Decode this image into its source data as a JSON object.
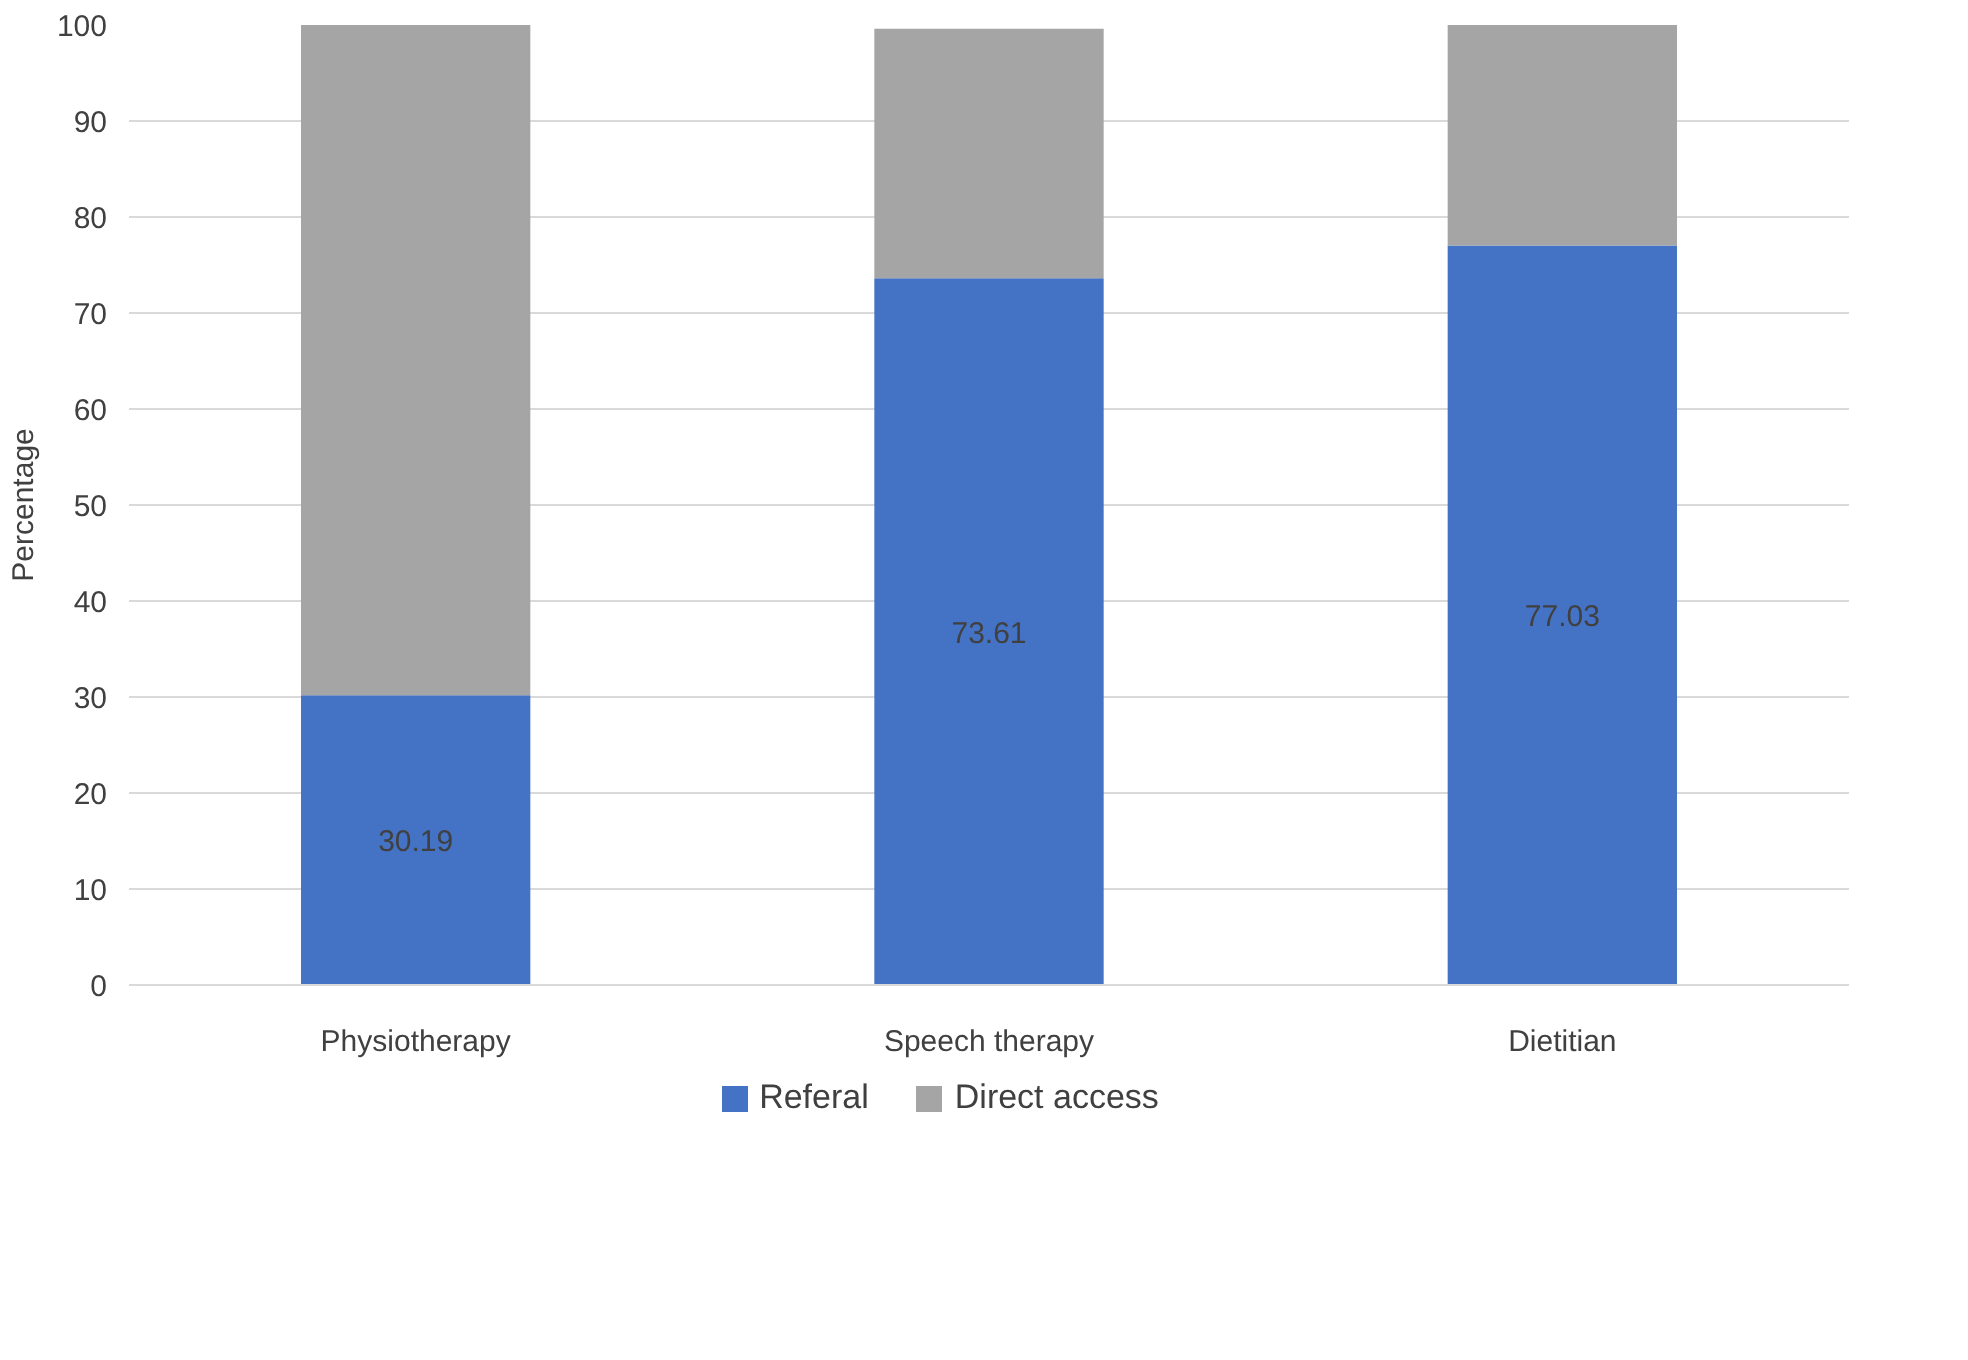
{
  "chart_data": {
    "type": "bar",
    "stacked": true,
    "ylabel": "Percentage",
    "categories": [
      "Physiotherapy",
      "Speech therapy",
      "Dietitian"
    ],
    "series": [
      {
        "name": "Referal",
        "color": "#4472c4",
        "values": [
          30.19,
          73.61,
          77.03
        ],
        "value_labels": [
          "30.19",
          "73.61",
          "77.03"
        ]
      },
      {
        "name": "Direct access",
        "color": "#a5a5a5",
        "values": [
          70,
          26,
          23
        ]
      }
    ],
    "ylim": [
      0,
      100
    ],
    "yticks": [
      0,
      10,
      20,
      30,
      40,
      50,
      60,
      70,
      80,
      90,
      100
    ],
    "grid": "y",
    "legend": "bottom"
  }
}
